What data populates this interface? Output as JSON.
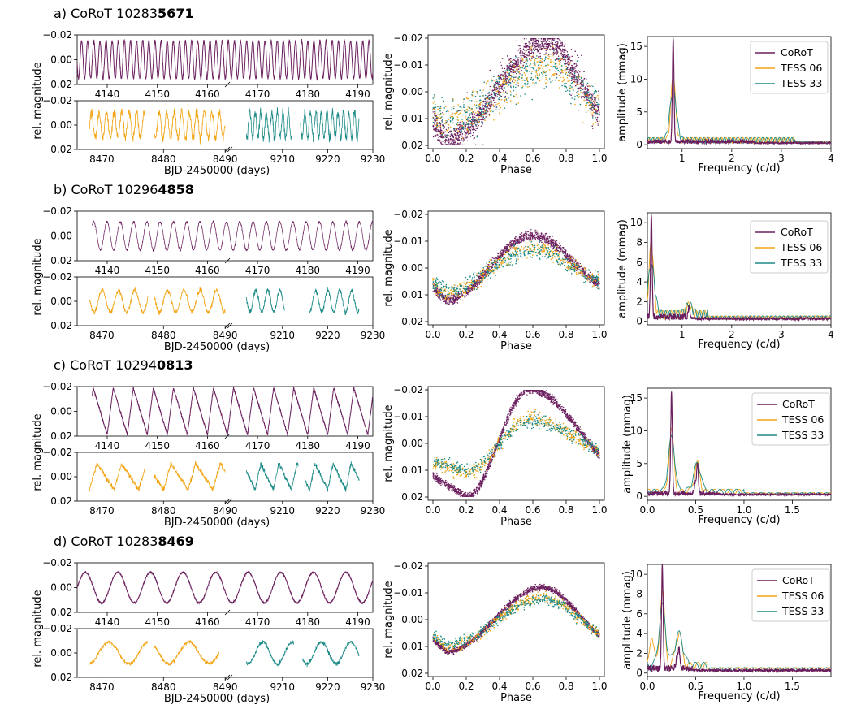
{
  "colors": {
    "corot": "#6b1f5e",
    "tess06": "#f2a413",
    "tess33": "#1c8a86"
  },
  "common": {
    "ylabel_lc": "rel. magnitude",
    "xlabel_lc": "BJD-2450000 (days)",
    "xlabel_phase": "Phase",
    "ylabel_amp": "amplitude (mmag)",
    "xlabel_freq": "Frequency (c/d)",
    "legend": [
      "CoRoT",
      "TESS 06",
      "TESS 33"
    ]
  },
  "rows": [
    {
      "letter": "a) CoRoT 10283",
      "bold": "5671"
    },
    {
      "letter": "b) CoRoT 10296",
      "bold": "4858"
    },
    {
      "letter": "c) CoRoT 10294",
      "bold": "0813"
    },
    {
      "letter": "d) CoRoT 10283",
      "bold": "8469"
    }
  ],
  "chart_data": [
    {
      "type": "line",
      "panel": "a-lightcurve-corot",
      "ylim": [
        0.02,
        -0.02
      ],
      "yticks": [
        "-0.02",
        "0.00",
        "0.02"
      ],
      "xlim": [
        4134,
        4193
      ],
      "xticks": [
        "4140",
        "4150",
        "4160",
        "4170",
        "4180",
        "4190"
      ],
      "series": [
        {
          "name": "CoRoT",
          "period_d": 1.22,
          "amplitude_mag": 0.016,
          "t_range": [
            4134,
            4193
          ]
        }
      ]
    },
    {
      "type": "line",
      "panel": "a-lightcurve-tess",
      "ylim": [
        0.02,
        -0.02
      ],
      "yticks": [
        "-0.02",
        "0.00",
        "0.02"
      ],
      "xticks": [
        "8470",
        "8480",
        "8490",
        "9210",
        "9220",
        "9230"
      ],
      "series": [
        {
          "name": "TESS 06",
          "segments": [
            [
              8468,
              8477
            ],
            [
              8478.5,
              8490
            ]
          ],
          "amplitude_mag": 0.012
        },
        {
          "name": "TESS 33",
          "segments": [
            [
              9202,
              9212
            ],
            [
              9214,
              9227
            ]
          ],
          "amplitude_mag": 0.012
        }
      ]
    },
    {
      "type": "scatter",
      "panel": "a-phase",
      "xlim": [
        0,
        1
      ],
      "ylim": [
        0.02,
        -0.02
      ],
      "xticks": [
        "0.0",
        "0.2",
        "0.4",
        "0.6",
        "0.8",
        "1.0"
      ],
      "yticks": [
        "-0.02",
        "-0.01",
        "0.00",
        "0.01",
        "0.02"
      ]
    },
    {
      "type": "line",
      "panel": "a-amplitude",
      "xlim": [
        0.3,
        4
      ],
      "ylim": [
        -0.5,
        16.5
      ],
      "xticks": [
        "1",
        "2",
        "3",
        "4"
      ],
      "yticks": [
        "0",
        "5",
        "10",
        "15"
      ],
      "series": [
        {
          "name": "CoRoT",
          "peak_freq": 0.82,
          "peak_amp": 15.8
        },
        {
          "name": "TESS 06",
          "peak_freq": 0.82,
          "peak_amp": 9.7
        },
        {
          "name": "TESS 33",
          "peak_freq": 0.82,
          "peak_amp": 7.5
        }
      ]
    },
    {
      "type": "line",
      "panel": "b-lightcurve-corot",
      "ylim": [
        0.02,
        -0.02
      ],
      "yticks": [
        "-0.02",
        "0.00",
        "0.02"
      ],
      "xticks": [
        "4140",
        "4150",
        "4160",
        "4170",
        "4180",
        "4190"
      ],
      "series": [
        {
          "name": "CoRoT",
          "period_d": 2.65,
          "amplitude_mag": 0.012,
          "t_range": [
            4137,
            4193
          ]
        }
      ]
    },
    {
      "type": "line",
      "panel": "b-lightcurve-tess",
      "ylim": [
        0.02,
        -0.02
      ],
      "yticks": [
        "-0.02",
        "0.00",
        "0.02"
      ],
      "xticks": [
        "8470",
        "8480",
        "8490",
        "9210",
        "9220",
        "9230"
      ],
      "series": [
        {
          "name": "TESS 06",
          "segments": [
            [
              8468,
              8477.5
            ],
            [
              8478.5,
              8490
            ]
          ],
          "amplitude_mag": 0.01
        },
        {
          "name": "TESS 33",
          "segments": [
            [
              9202,
              9210.5
            ],
            [
              9216,
              9227
            ]
          ],
          "amplitude_mag": 0.01
        }
      ]
    },
    {
      "type": "scatter",
      "panel": "b-phase",
      "xlim": [
        0,
        1
      ],
      "ylim": [
        0.02,
        -0.02
      ],
      "xticks": [
        "0.0",
        "0.2",
        "0.4",
        "0.6",
        "0.8",
        "1.0"
      ],
      "yticks": [
        "-0.02",
        "-0.01",
        "0.00",
        "0.01",
        "0.02"
      ]
    },
    {
      "type": "line",
      "panel": "b-amplitude",
      "xlim": [
        0.3,
        4
      ],
      "ylim": [
        -0.3,
        11
      ],
      "xticks": [
        "1",
        "2",
        "3",
        "4"
      ],
      "yticks": [
        "0",
        "2",
        "4",
        "6",
        "8",
        "10"
      ],
      "series": [
        {
          "name": "CoRoT",
          "peak_freq": 0.38,
          "peak_amp": 10.6,
          "second_peak": [
            1.14,
            1.2
          ]
        },
        {
          "name": "TESS 06",
          "peak_freq": 0.38,
          "peak_amp": 7.2
        },
        {
          "name": "TESS 33",
          "peak_freq": 0.38,
          "peak_amp": 5.0
        }
      ]
    },
    {
      "type": "line",
      "panel": "c-lightcurve-corot",
      "ylim": [
        0.02,
        -0.02
      ],
      "yticks": [
        "-0.02",
        "0.00",
        "0.02"
      ],
      "xticks": [
        "4140",
        "4150",
        "4160",
        "4170",
        "4180",
        "4190"
      ],
      "series": [
        {
          "name": "CoRoT",
          "period_d": 4.0,
          "amplitude_mag": 0.02,
          "t_range": [
            4137,
            4193
          ]
        }
      ]
    },
    {
      "type": "line",
      "panel": "c-lightcurve-tess",
      "ylim": [
        0.02,
        -0.02
      ],
      "yticks": [
        "-0.02",
        "0.00",
        "0.02"
      ],
      "xticks": [
        "8470",
        "8480",
        "8490",
        "9210",
        "9220",
        "9230"
      ],
      "series": [
        {
          "name": "TESS 06",
          "segments": [
            [
              8468,
              8477
            ],
            [
              8478.5,
              8490
            ]
          ],
          "amplitude_mag": 0.012
        },
        {
          "name": "TESS 33",
          "segments": [
            [
              9202,
              9213.5
            ],
            [
              9215,
              9227
            ]
          ],
          "amplitude_mag": 0.01
        }
      ]
    },
    {
      "type": "scatter",
      "panel": "c-phase",
      "xlim": [
        0,
        1
      ],
      "ylim": [
        0.02,
        -0.02
      ],
      "xticks": [
        "0.0",
        "0.2",
        "0.4",
        "0.6",
        "0.8",
        "1.0"
      ],
      "yticks": [
        "-0.02",
        "-0.01",
        "0.00",
        "0.01",
        "0.02"
      ]
    },
    {
      "type": "line",
      "panel": "c-amplitude",
      "xlim": [
        0,
        1.9
      ],
      "ylim": [
        -0.5,
        16.5
      ],
      "xticks": [
        "0.0",
        "0.5",
        "1.0",
        "1.5"
      ],
      "yticks": [
        "0",
        "5",
        "10",
        "15"
      ],
      "series": [
        {
          "name": "CoRoT",
          "peak_freq": 0.25,
          "peak_amp": 15.6,
          "second_peak": [
            0.52,
            4.2
          ]
        },
        {
          "name": "TESS 06",
          "peak_freq": 0.25,
          "peak_amp": 9.5
        },
        {
          "name": "TESS 33",
          "peak_freq": 0.25,
          "peak_amp": 8.2
        }
      ]
    },
    {
      "type": "line",
      "panel": "d-lightcurve-corot",
      "ylim": [
        0.02,
        -0.02
      ],
      "yticks": [
        "-0.02",
        "0.00",
        "0.02"
      ],
      "xticks": [
        "4140",
        "4150",
        "4160",
        "4170",
        "4180",
        "4190"
      ],
      "series": [
        {
          "name": "CoRoT",
          "period_d": 6.5,
          "amplitude_mag": 0.013,
          "t_range": [
            4134,
            4193
          ]
        }
      ]
    },
    {
      "type": "line",
      "panel": "d-lightcurve-tess",
      "ylim": [
        0.02,
        -0.02
      ],
      "yticks": [
        "-0.02",
        "0.00",
        "0.02"
      ],
      "xticks": [
        "8470",
        "8480",
        "8490",
        "9210",
        "9220",
        "9230"
      ],
      "series": [
        {
          "name": "TESS 06",
          "segments": [
            [
              8468,
              8477.5
            ],
            [
              8478.5,
              8489
            ]
          ],
          "amplitude_mag": 0.01
        },
        {
          "name": "TESS 33",
          "segments": [
            [
              9202,
              9212.5
            ],
            [
              9214.5,
              9227
            ]
          ],
          "amplitude_mag": 0.01
        }
      ]
    },
    {
      "type": "scatter",
      "panel": "d-phase",
      "xlim": [
        0,
        1
      ],
      "ylim": [
        0.02,
        -0.02
      ],
      "xticks": [
        "0.0",
        "0.2",
        "0.4",
        "0.6",
        "0.8",
        "1.0"
      ],
      "yticks": [
        "-0.02",
        "-0.01",
        "0.00",
        "0.01",
        "0.02"
      ]
    },
    {
      "type": "line",
      "panel": "d-amplitude",
      "xlim": [
        0,
        1.9
      ],
      "ylim": [
        -0.3,
        11
      ],
      "xticks": [
        "0.0",
        "0.5",
        "1.0",
        "1.5"
      ],
      "yticks": [
        "0",
        "2",
        "4",
        "6",
        "8",
        "10"
      ],
      "series": [
        {
          "name": "CoRoT",
          "peak_freq": 0.155,
          "peak_amp": 10.5
        },
        {
          "name": "TESS 06",
          "peak_freq": 0.155,
          "peak_amp": 7.8
        },
        {
          "name": "TESS 33",
          "peak_freq": 0.155,
          "peak_amp": 6.0
        }
      ]
    }
  ]
}
